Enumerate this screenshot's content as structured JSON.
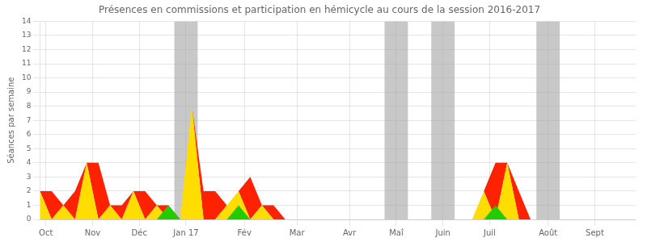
{
  "chart_data": {
    "type": "area",
    "title": "Présences en commissions et participation en hémicycle au cours de la session 2016-2017",
    "ylabel": "Séances par semaine",
    "x": [
      0,
      1,
      2,
      3,
      4,
      5,
      6,
      7,
      8,
      9,
      10,
      11,
      12,
      13,
      14,
      15,
      16,
      17,
      18,
      19,
      20,
      21,
      22,
      23,
      24,
      25,
      26,
      27,
      28,
      29,
      30,
      31,
      32,
      33,
      34,
      35,
      36,
      37,
      38,
      39,
      40,
      41,
      42,
      43,
      44,
      45,
      46,
      47,
      48,
      49,
      50,
      51
    ],
    "xlim": [
      0,
      51
    ],
    "xticks": [
      {
        "value": 0.5,
        "label": "Oct"
      },
      {
        "value": 4.5,
        "label": "Nov"
      },
      {
        "value": 8.5,
        "label": "Déc"
      },
      {
        "value": 12.5,
        "label": "Jan 17"
      },
      {
        "value": 17.5,
        "label": "Fév"
      },
      {
        "value": 22.0,
        "label": "Mar"
      },
      {
        "value": 26.5,
        "label": "Avr"
      },
      {
        "value": 30.5,
        "label": "Maî"
      },
      {
        "value": 34.5,
        "label": "Juin"
      },
      {
        "value": 38.5,
        "label": "Juil"
      },
      {
        "value": 43.5,
        "label": "Août"
      },
      {
        "value": 47.5,
        "label": "Sept"
      }
    ],
    "ylim": [
      0,
      14
    ],
    "yticks": [
      0,
      1,
      2,
      3,
      4,
      5,
      6,
      7,
      8,
      9,
      10,
      11,
      12,
      13,
      14
    ],
    "grid": true,
    "stacked": true,
    "series": [
      {
        "color": "#ffdd00",
        "values": [
          2,
          0,
          1,
          0,
          4,
          0,
          1,
          0,
          2,
          0,
          1,
          0,
          0,
          8,
          0,
          0,
          1,
          2,
          0,
          1,
          0,
          0,
          0,
          0,
          0,
          0,
          0,
          0,
          0,
          0,
          0,
          0,
          0,
          0,
          0,
          0,
          0,
          0,
          2,
          0,
          4,
          0,
          0,
          0,
          0,
          0,
          0,
          0,
          0,
          0,
          0,
          0
        ]
      },
      {
        "color": "#ff2200",
        "values": [
          0,
          2,
          0,
          2,
          0,
          4,
          0,
          1,
          0,
          2,
          0,
          1,
          0,
          0,
          2,
          2,
          0,
          0,
          3,
          0,
          1,
          0,
          0,
          0,
          0,
          0,
          0,
          0,
          0,
          0,
          0,
          0,
          0,
          0,
          0,
          0,
          0,
          0,
          0,
          4,
          0,
          2,
          0,
          0,
          0,
          0,
          0,
          0,
          0,
          0,
          0,
          0
        ]
      },
      {
        "color": "#22cc00",
        "stacked": false,
        "values": [
          0,
          0,
          0,
          0,
          0,
          0,
          0,
          0,
          0,
          0,
          0,
          1,
          0,
          0,
          0,
          0,
          0,
          1,
          0,
          0,
          0,
          0,
          0,
          0,
          0,
          0,
          0,
          0,
          0,
          0,
          0,
          0,
          0,
          0,
          0,
          0,
          0,
          0,
          0,
          1,
          0,
          0,
          0,
          0,
          0,
          0,
          0,
          0,
          0,
          0,
          0,
          0
        ]
      }
    ],
    "x_bands": [
      [
        11.5,
        13.5
      ],
      [
        29.5,
        31.5
      ],
      [
        33.5,
        35.5
      ],
      [
        42.5,
        44.5
      ]
    ],
    "band_color": "#aaaaaa"
  }
}
